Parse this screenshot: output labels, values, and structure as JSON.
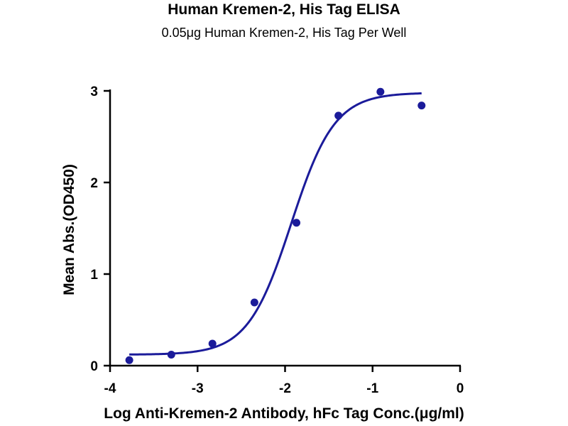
{
  "chart_data": {
    "type": "scatter",
    "title": "Human Kremen-2, His Tag ELISA",
    "subtitle": "0.05μg Human Kremen-2, His Tag Per Well",
    "xlabel": "Log Anti-Kremen-2 Antibody, hFc Tag Conc.(μg/ml)",
    "ylabel": "Mean Abs.(OD450)",
    "xlim": [
      -4,
      0
    ],
    "ylim": [
      0,
      3
    ],
    "x_ticks": [
      -4,
      -3,
      -2,
      -1,
      0
    ],
    "x_tick_labels": [
      "-4",
      "-3",
      "-2",
      "-1",
      "0"
    ],
    "y_ticks": [
      0,
      1,
      2,
      3
    ],
    "y_tick_labels": [
      "0",
      "1",
      "2",
      "3"
    ],
    "grid": false,
    "series": [
      {
        "x": [
          -3.78,
          -3.3,
          -2.83,
          -2.35,
          -1.87,
          -1.39,
          -0.91,
          -0.44
        ],
        "y": [
          0.06,
          0.12,
          0.24,
          0.69,
          1.56,
          2.73,
          2.99,
          2.84
        ]
      }
    ],
    "fit_curve": {
      "model": "4PL",
      "bottom": 0.12,
      "top": 2.98,
      "log_ec50": -1.93,
      "hill_slope": 1.75,
      "x_range": [
        -3.78,
        -0.44
      ]
    },
    "colors": {
      "series": "#1b1b9a",
      "axis": "#000000"
    }
  }
}
